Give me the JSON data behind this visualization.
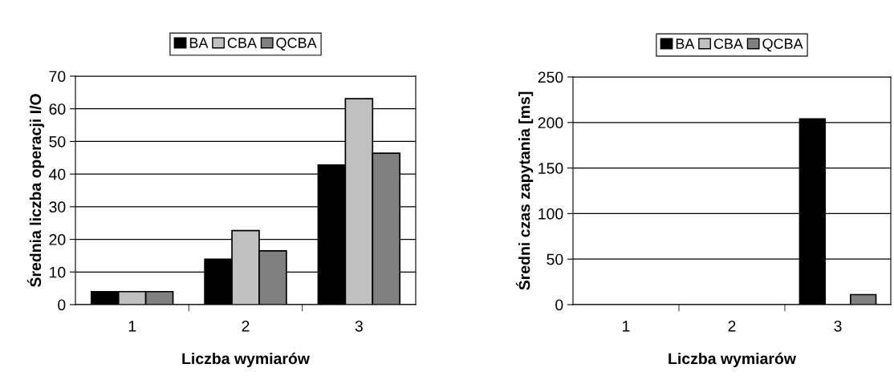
{
  "chart_data": [
    {
      "type": "bar",
      "categories": [
        "1",
        "2",
        "3"
      ],
      "xlabel": "Liczba wymiarów",
      "ylabel": "Średnia liczba operacji I/O",
      "ylim": [
        0,
        70
      ],
      "yticks": [
        0,
        10,
        20,
        30,
        40,
        50,
        60,
        70
      ],
      "grid": "y",
      "legend": "top",
      "series": [
        {
          "name": "BA",
          "color": "#000000",
          "values": [
            4,
            13.9,
            42.8
          ]
        },
        {
          "name": "CBA",
          "color": "#c0c0c0",
          "values": [
            4,
            22.7,
            63.1
          ]
        },
        {
          "name": "QCBA",
          "color": "#808080",
          "values": [
            4,
            16.5,
            46.4
          ]
        }
      ]
    },
    {
      "type": "bar",
      "categories": [
        "1",
        "2",
        "3"
      ],
      "xlabel": "Liczba wymiarów",
      "ylabel": "Średni czas zapytania [ms]",
      "ylim": [
        0,
        250
      ],
      "yticks": [
        0,
        50,
        100,
        150,
        200,
        250
      ],
      "grid": "y",
      "legend": "top",
      "series": [
        {
          "name": "BA",
          "color": "#000000",
          "values": [
            null,
            null,
            204
          ]
        },
        {
          "name": "CBA",
          "color": "#c0c0c0",
          "values": [
            null,
            null,
            null
          ]
        },
        {
          "name": "QCBA",
          "color": "#808080",
          "values": [
            null,
            null,
            11
          ]
        }
      ]
    }
  ]
}
